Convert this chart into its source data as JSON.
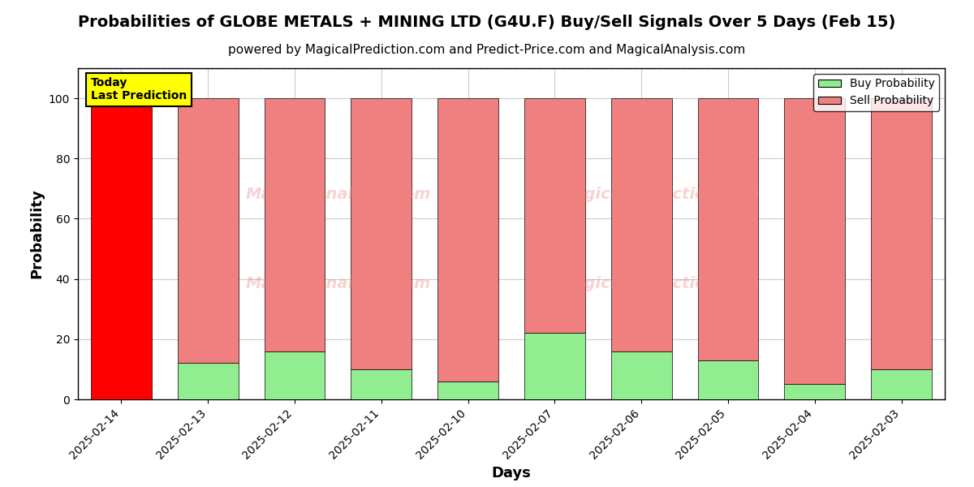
{
  "title": "Probabilities of GLOBE METALS + MINING LTD (G4U.F) Buy/Sell Signals Over 5 Days (Feb 15)",
  "subtitle": "powered by MagicalPrediction.com and Predict-Price.com and MagicalAnalysis.com",
  "xlabel": "Days",
  "ylabel": "Probability",
  "categories": [
    "2025-02-14",
    "2025-02-13",
    "2025-02-12",
    "2025-02-11",
    "2025-02-10",
    "2025-02-07",
    "2025-02-06",
    "2025-02-05",
    "2025-02-04",
    "2025-02-03"
  ],
  "buy_probs": [
    0,
    12,
    16,
    10,
    6,
    22,
    16,
    13,
    5,
    10
  ],
  "sell_probs": [
    100,
    88,
    84,
    90,
    94,
    78,
    84,
    87,
    95,
    90
  ],
  "today_index": 0,
  "buy_color_normal": "#90EE90",
  "buy_color_today": "#FF0000",
  "sell_color_normal": "#F08080",
  "sell_color_today": "#FF0000",
  "today_label": "Today\nLast Prediction",
  "today_label_bg": "#FFFF00",
  "legend_buy_color": "#90EE90",
  "legend_sell_color": "#F08080",
  "ylim": [
    0,
    110
  ],
  "dashed_line_y": 110,
  "grid_color": "#cccccc",
  "bar_edge_color": "#000000",
  "bar_width": 0.7,
  "title_fontsize": 14,
  "subtitle_fontsize": 11,
  "axis_label_fontsize": 13,
  "tick_fontsize": 10
}
